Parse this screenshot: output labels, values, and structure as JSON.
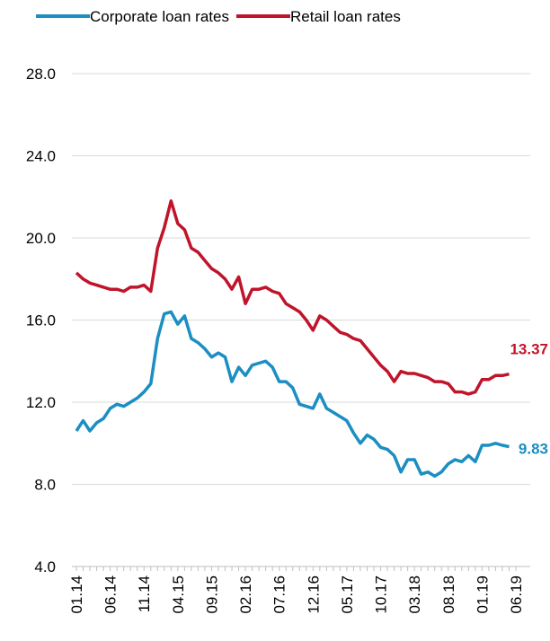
{
  "chart_data": {
    "type": "line",
    "categories": [
      "01.14",
      null,
      null,
      null,
      null,
      "06.14",
      null,
      null,
      null,
      null,
      "11.14",
      null,
      null,
      null,
      null,
      "04.15",
      null,
      null,
      null,
      null,
      "09.15",
      null,
      null,
      null,
      null,
      "02.16",
      null,
      null,
      null,
      null,
      "07.16",
      null,
      null,
      null,
      null,
      "12.16",
      null,
      null,
      null,
      null,
      "05.17",
      null,
      null,
      null,
      null,
      "10.17",
      null,
      null,
      null,
      null,
      "03.18",
      null,
      null,
      null,
      null,
      "08.18",
      null,
      null,
      null,
      null,
      "01.19",
      null,
      null,
      null,
      null,
      "06.19"
    ],
    "series": [
      {
        "name": "Corporate loan rates",
        "color": "#1b8ec2",
        "values": [
          10.6,
          11.1,
          10.6,
          11.0,
          11.2,
          11.7,
          11.9,
          11.8,
          12.0,
          12.2,
          12.5,
          12.9,
          15.1,
          16.3,
          16.4,
          15.8,
          16.2,
          15.1,
          14.9,
          14.6,
          14.2,
          14.4,
          14.2,
          13.0,
          13.7,
          13.3,
          13.8,
          13.9,
          14.0,
          13.7,
          13.0,
          13.0,
          12.7,
          11.9,
          11.8,
          11.7,
          12.4,
          11.7,
          11.5,
          11.3,
          11.1,
          10.5,
          10.0,
          10.4,
          10.2,
          9.8,
          9.7,
          9.4,
          8.6,
          9.2,
          9.2,
          8.5,
          8.6,
          8.4,
          8.6,
          9.0,
          9.2,
          9.1,
          9.4,
          9.1,
          9.9,
          9.9,
          10.0,
          9.9,
          9.83,
          null
        ]
      },
      {
        "name": "Retail loan rates",
        "color": "#c0142b",
        "values": [
          18.3,
          18.0,
          17.8,
          17.7,
          17.6,
          17.5,
          17.5,
          17.4,
          17.6,
          17.6,
          17.7,
          17.4,
          19.5,
          20.5,
          21.8,
          20.7,
          20.4,
          19.5,
          19.3,
          18.9,
          18.5,
          18.3,
          18.0,
          17.5,
          18.1,
          16.8,
          17.5,
          17.5,
          17.6,
          17.4,
          17.3,
          16.8,
          16.6,
          16.4,
          16.0,
          15.5,
          16.2,
          16.0,
          15.7,
          15.4,
          15.3,
          15.1,
          15.0,
          14.6,
          14.2,
          13.8,
          13.5,
          13.0,
          13.5,
          13.4,
          13.4,
          13.3,
          13.2,
          13.0,
          13.0,
          12.9,
          12.5,
          12.5,
          12.4,
          12.5,
          13.1,
          13.1,
          13.3,
          13.3,
          13.37,
          null
        ]
      }
    ],
    "ylim": [
      4,
      28
    ],
    "yticks": [
      {
        "value": 4,
        "label": "4.0"
      },
      {
        "value": 8,
        "label": "8.0"
      },
      {
        "value": 12,
        "label": "12.0"
      },
      {
        "value": 16,
        "label": "16.0"
      },
      {
        "value": 20,
        "label": "20.0"
      },
      {
        "value": 24,
        "label": "24.0"
      },
      {
        "value": 28,
        "label": "28.0"
      }
    ],
    "grid": true,
    "legend": "top"
  }
}
